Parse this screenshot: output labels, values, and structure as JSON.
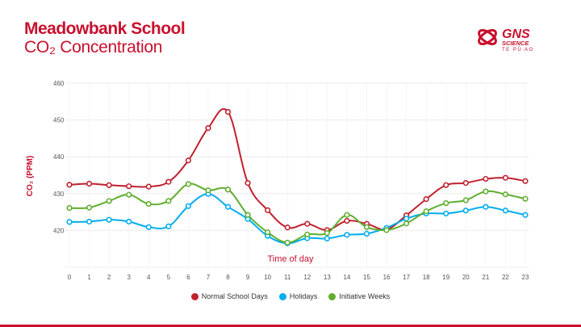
{
  "header": {
    "title": "Meadowbank School",
    "subtitle": "CO₂ Concentration",
    "logo_text": "GNS SCIENCE TE PŪ AO"
  },
  "colors": {
    "brand": "#c8102e",
    "normal": "#c0202f",
    "holidays": "#00adef",
    "initiative": "#5fae2e"
  },
  "chart_data": {
    "type": "line",
    "title": "",
    "xlabel": "Time of day",
    "ylabel": "CO₂ (PPM)",
    "x": [
      0,
      1,
      2,
      3,
      4,
      5,
      6,
      7,
      8,
      9,
      10,
      11,
      12,
      13,
      14,
      15,
      16,
      17,
      18,
      19,
      20,
      21,
      22,
      23
    ],
    "ylim": [
      410,
      460
    ],
    "yticks": [
      420,
      430,
      440,
      450,
      460
    ],
    "grid": true,
    "legend": "bottom",
    "series": [
      {
        "name": "Normal School Days",
        "color": "#c0202f",
        "values": [
          432.4,
          432.7,
          432.3,
          432.0,
          431.9,
          433.2,
          439.0,
          447.8,
          452.2,
          432.9,
          425.5,
          420.8,
          421.8,
          420.1,
          422.6,
          421.8,
          420.3,
          424.1,
          428.5,
          432.3,
          432.9,
          434.0,
          434.3,
          433.4
        ]
      },
      {
        "name": "Holidays",
        "color": "#00adef",
        "values": [
          422.3,
          422.4,
          422.9,
          422.4,
          420.9,
          421.1,
          426.6,
          429.9,
          426.4,
          423.1,
          418.5,
          416.5,
          417.9,
          417.8,
          418.8,
          419.1,
          420.7,
          423.2,
          424.6,
          424.6,
          425.4,
          426.4,
          425.4,
          424.2
        ]
      },
      {
        "name": "Initiative Weeks",
        "color": "#5fae2e",
        "values": [
          426.1,
          426.2,
          428.0,
          429.7,
          427.2,
          428.0,
          432.6,
          430.9,
          431.1,
          424.2,
          419.5,
          416.7,
          418.9,
          419.3,
          424.2,
          420.9,
          420.1,
          421.9,
          425.2,
          427.4,
          428.2,
          430.6,
          429.8,
          428.6
        ]
      }
    ]
  }
}
